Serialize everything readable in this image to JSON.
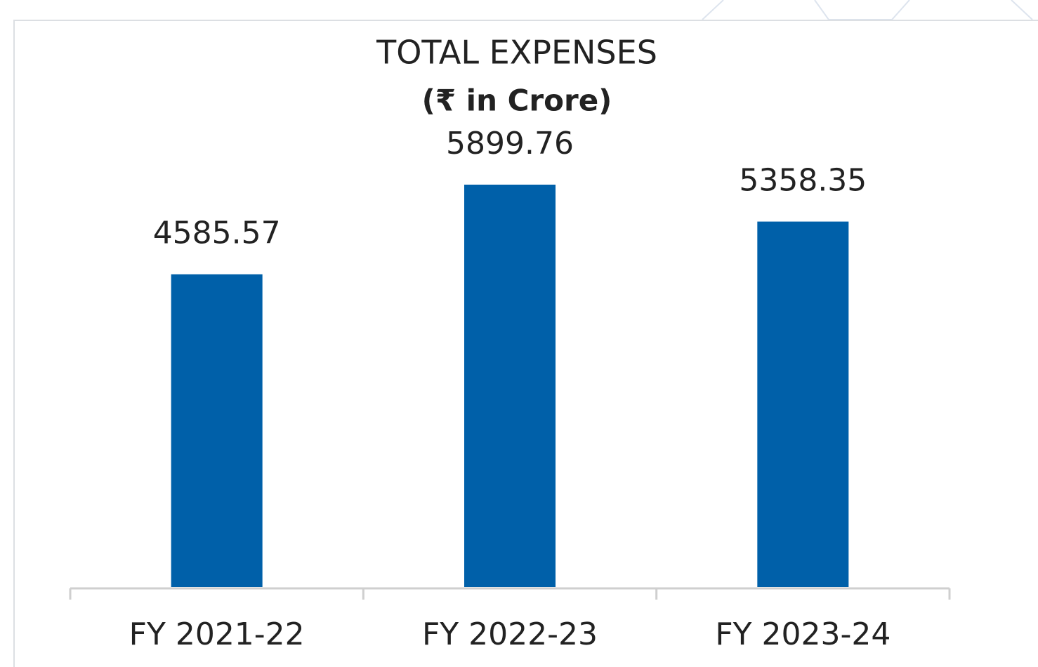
{
  "chart_data": {
    "type": "bar",
    "title": "TOTAL EXPENSES",
    "subtitle": "(₹ in Crore)",
    "categories": [
      "FY 2021-22",
      "FY 2022-23",
      "FY 2023-24"
    ],
    "values": [
      4585.57,
      5899.76,
      5358.35
    ],
    "color": "#0060a9"
  }
}
